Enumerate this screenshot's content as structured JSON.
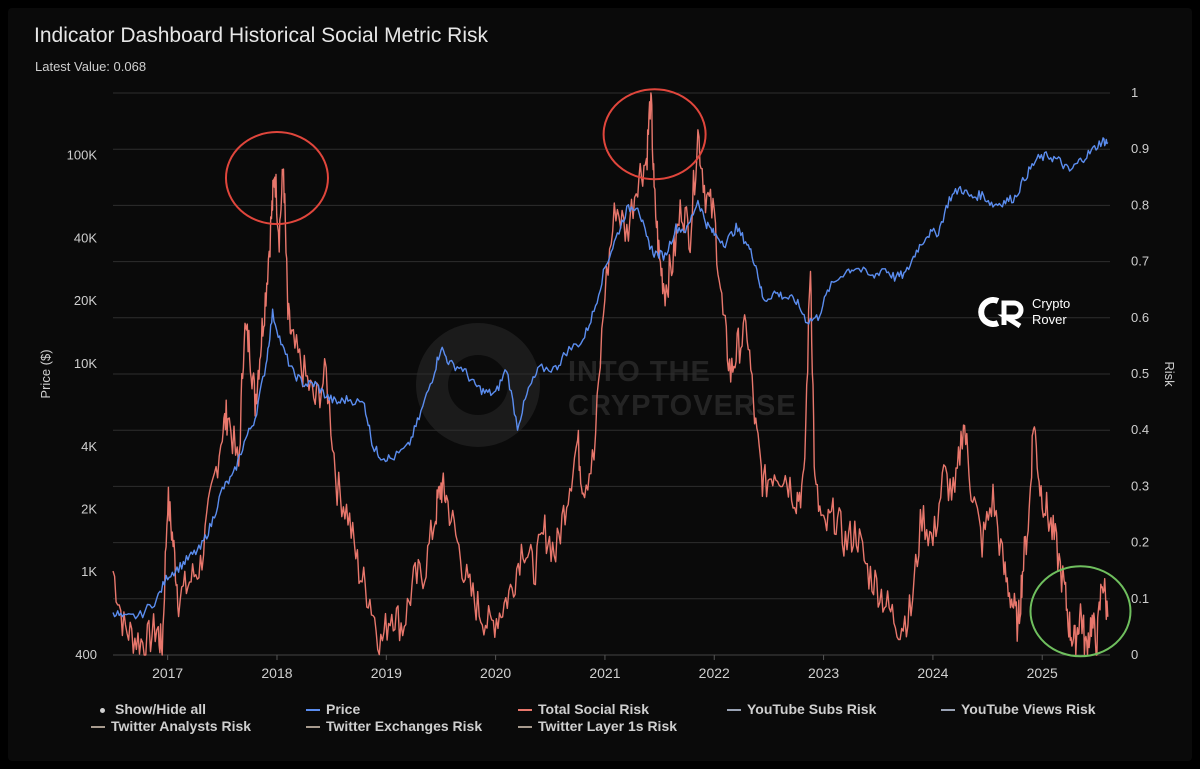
{
  "title": "Indicator Dashboard Historical Social Metric Risk",
  "latest_value_label": "Latest Value: 0.068",
  "brand": {
    "line1": "Crypto",
    "line2": "Rover",
    "logo_text": "CR"
  },
  "watermark": {
    "line1": "INTO THE",
    "line2": "CRYPTOVERSE"
  },
  "legend": [
    {
      "label": "Show/Hide all",
      "color": "#d0d0d0",
      "kind": "dot"
    },
    {
      "label": "Price",
      "color": "#5b8def",
      "kind": "line"
    },
    {
      "label": "Total Social Risk",
      "color": "#e8776c",
      "kind": "line"
    },
    {
      "label": "YouTube Subs Risk",
      "color": "#9aa3b5",
      "kind": "line"
    },
    {
      "label": "YouTube Views Risk",
      "color": "#9aa3b5",
      "kind": "line"
    },
    {
      "label": "Twitter Analysts Risk",
      "color": "#a89b8e",
      "kind": "line"
    },
    {
      "label": "Twitter Exchanges Risk",
      "color": "#a89b8e",
      "kind": "line"
    },
    {
      "label": "Twitter Layer 1s Risk",
      "color": "#a89b8e",
      "kind": "line"
    }
  ],
  "chart_data": {
    "type": "line",
    "title": "Indicator Dashboard Historical Social Metric Risk",
    "subtitle": "Latest Value: 0.068",
    "xlabel": "",
    "ylabel_left": "Price ($)",
    "ylabel_right": "Risk",
    "x_ticks": [
      "2017",
      "2018",
      "2019",
      "2020",
      "2021",
      "2022",
      "2023",
      "2024",
      "2025"
    ],
    "x_range": [
      2016.5,
      2025.62
    ],
    "y_left_scale": "log",
    "y_left_ticks": [
      "400",
      "1K",
      "2K",
      "4K",
      "10K",
      "20K",
      "40K",
      "100K"
    ],
    "y_left_tick_values": [
      400,
      1000,
      2000,
      4000,
      10000,
      20000,
      40000,
      100000
    ],
    "y_left_range": [
      400,
      200000
    ],
    "y_right_ticks": [
      "0",
      "0.1",
      "0.2",
      "0.3",
      "0.4",
      "0.5",
      "0.6",
      "0.7",
      "0.8",
      "0.9",
      "1"
    ],
    "y_right_range": [
      0,
      1
    ],
    "grid": true,
    "series": [
      {
        "name": "Price",
        "axis": "left",
        "color": "#5b8def",
        "points": [
          [
            2016.5,
            650
          ],
          [
            2016.6,
            600
          ],
          [
            2016.75,
            620
          ],
          [
            2016.9,
            740
          ],
          [
            2017.0,
            960
          ],
          [
            2017.1,
            1050
          ],
          [
            2017.2,
            1180
          ],
          [
            2017.3,
            1300
          ],
          [
            2017.4,
            1700
          ],
          [
            2017.5,
            2500
          ],
          [
            2017.6,
            2900
          ],
          [
            2017.7,
            4200
          ],
          [
            2017.8,
            5500
          ],
          [
            2017.9,
            10000
          ],
          [
            2017.96,
            17500
          ],
          [
            2018.05,
            12000
          ],
          [
            2018.15,
            9000
          ],
          [
            2018.25,
            8000
          ],
          [
            2018.35,
            8000
          ],
          [
            2018.45,
            7000
          ],
          [
            2018.55,
            6500
          ],
          [
            2018.65,
            6800
          ],
          [
            2018.8,
            6400
          ],
          [
            2018.88,
            4000
          ],
          [
            2018.95,
            3600
          ],
          [
            2019.05,
            3500
          ],
          [
            2019.2,
            4000
          ],
          [
            2019.3,
            5500
          ],
          [
            2019.42,
            8500
          ],
          [
            2019.5,
            12000
          ],
          [
            2019.58,
            10000
          ],
          [
            2019.7,
            9500
          ],
          [
            2019.8,
            8000
          ],
          [
            2019.9,
            7300
          ],
          [
            2020.0,
            7200
          ],
          [
            2020.1,
            9500
          ],
          [
            2020.2,
            5000
          ],
          [
            2020.3,
            7500
          ],
          [
            2020.4,
            9500
          ],
          [
            2020.55,
            9500
          ],
          [
            2020.65,
            11500
          ],
          [
            2020.8,
            13000
          ],
          [
            2020.9,
            18000
          ],
          [
            2021.0,
            29000
          ],
          [
            2021.1,
            40000
          ],
          [
            2021.2,
            55000
          ],
          [
            2021.3,
            58000
          ],
          [
            2021.38,
            40000
          ],
          [
            2021.45,
            34000
          ],
          [
            2021.55,
            33000
          ],
          [
            2021.65,
            45000
          ],
          [
            2021.75,
            44000
          ],
          [
            2021.85,
            61000
          ],
          [
            2021.93,
            47000
          ],
          [
            2022.0,
            42000
          ],
          [
            2022.1,
            38000
          ],
          [
            2022.2,
            45000
          ],
          [
            2022.3,
            38000
          ],
          [
            2022.38,
            30000
          ],
          [
            2022.45,
            20000
          ],
          [
            2022.55,
            22000
          ],
          [
            2022.65,
            21000
          ],
          [
            2022.75,
            20000
          ],
          [
            2022.85,
            16000
          ],
          [
            2022.95,
            16800
          ],
          [
            2023.05,
            23000
          ],
          [
            2023.2,
            28000
          ],
          [
            2023.3,
            29000
          ],
          [
            2023.45,
            26000
          ],
          [
            2023.55,
            29000
          ],
          [
            2023.65,
            26000
          ],
          [
            2023.75,
            27000
          ],
          [
            2023.85,
            35000
          ],
          [
            2023.95,
            42000
          ],
          [
            2024.05,
            43000
          ],
          [
            2024.15,
            62000
          ],
          [
            2024.25,
            70000
          ],
          [
            2024.35,
            63000
          ],
          [
            2024.45,
            65000
          ],
          [
            2024.55,
            58000
          ],
          [
            2024.65,
            60000
          ],
          [
            2024.75,
            63000
          ],
          [
            2024.85,
            80000
          ],
          [
            2024.95,
            96000
          ],
          [
            2025.05,
            100000
          ],
          [
            2025.15,
            95000
          ],
          [
            2025.25,
            84000
          ],
          [
            2025.35,
            95000
          ],
          [
            2025.45,
            105000
          ],
          [
            2025.55,
            118000
          ],
          [
            2025.6,
            116000
          ]
        ]
      },
      {
        "name": "Total Social Risk",
        "axis": "right",
        "color": "#e8776c",
        "points": [
          [
            2016.5,
            0.15
          ],
          [
            2016.6,
            0.05
          ],
          [
            2016.7,
            0.03
          ],
          [
            2016.8,
            0.02
          ],
          [
            2016.9,
            0.05
          ],
          [
            2016.95,
            0.01
          ],
          [
            2017.0,
            0.28
          ],
          [
            2017.05,
            0.2
          ],
          [
            2017.1,
            0.1
          ],
          [
            2017.2,
            0.13
          ],
          [
            2017.3,
            0.16
          ],
          [
            2017.4,
            0.28
          ],
          [
            2017.5,
            0.4
          ],
          [
            2017.55,
            0.43
          ],
          [
            2017.65,
            0.33
          ],
          [
            2017.7,
            0.58
          ],
          [
            2017.75,
            0.55
          ],
          [
            2017.8,
            0.45
          ],
          [
            2017.85,
            0.55
          ],
          [
            2017.9,
            0.65
          ],
          [
            2017.95,
            0.78
          ],
          [
            2017.98,
            0.86
          ],
          [
            2018.02,
            0.75
          ],
          [
            2018.06,
            0.87
          ],
          [
            2018.1,
            0.6
          ],
          [
            2018.15,
            0.55
          ],
          [
            2018.25,
            0.5
          ],
          [
            2018.35,
            0.45
          ],
          [
            2018.45,
            0.5
          ],
          [
            2018.55,
            0.3
          ],
          [
            2018.65,
            0.25
          ],
          [
            2018.75,
            0.15
          ],
          [
            2018.85,
            0.1
          ],
          [
            2018.95,
            0.02
          ],
          [
            2019.05,
            0.08
          ],
          [
            2019.15,
            0.05
          ],
          [
            2019.25,
            0.13
          ],
          [
            2019.35,
            0.15
          ],
          [
            2019.45,
            0.25
          ],
          [
            2019.5,
            0.3
          ],
          [
            2019.55,
            0.28
          ],
          [
            2019.65,
            0.2
          ],
          [
            2019.75,
            0.12
          ],
          [
            2019.85,
            0.08
          ],
          [
            2019.95,
            0.05
          ],
          [
            2020.05,
            0.08
          ],
          [
            2020.15,
            0.12
          ],
          [
            2020.25,
            0.2
          ],
          [
            2020.35,
            0.15
          ],
          [
            2020.45,
            0.22
          ],
          [
            2020.55,
            0.18
          ],
          [
            2020.65,
            0.28
          ],
          [
            2020.75,
            0.38
          ],
          [
            2020.8,
            0.3
          ],
          [
            2020.9,
            0.35
          ],
          [
            2021.0,
            0.65
          ],
          [
            2021.1,
            0.8
          ],
          [
            2021.2,
            0.75
          ],
          [
            2021.3,
            0.85
          ],
          [
            2021.38,
            0.88
          ],
          [
            2021.42,
            1.0
          ],
          [
            2021.45,
            0.82
          ],
          [
            2021.5,
            0.7
          ],
          [
            2021.55,
            0.65
          ],
          [
            2021.62,
            0.7
          ],
          [
            2021.7,
            0.8
          ],
          [
            2021.78,
            0.75
          ],
          [
            2021.85,
            0.93
          ],
          [
            2021.92,
            0.82
          ],
          [
            2022.0,
            0.78
          ],
          [
            2022.08,
            0.6
          ],
          [
            2022.15,
            0.5
          ],
          [
            2022.22,
            0.55
          ],
          [
            2022.3,
            0.58
          ],
          [
            2022.38,
            0.4
          ],
          [
            2022.45,
            0.3
          ],
          [
            2022.55,
            0.33
          ],
          [
            2022.65,
            0.32
          ],
          [
            2022.75,
            0.28
          ],
          [
            2022.82,
            0.3
          ],
          [
            2022.88,
            0.7
          ],
          [
            2022.92,
            0.3
          ],
          [
            2023.0,
            0.22
          ],
          [
            2023.1,
            0.25
          ],
          [
            2023.2,
            0.2
          ],
          [
            2023.3,
            0.22
          ],
          [
            2023.4,
            0.15
          ],
          [
            2023.5,
            0.12
          ],
          [
            2023.6,
            0.08
          ],
          [
            2023.7,
            0.05
          ],
          [
            2023.8,
            0.08
          ],
          [
            2023.9,
            0.25
          ],
          [
            2024.0,
            0.2
          ],
          [
            2024.1,
            0.32
          ],
          [
            2024.2,
            0.28
          ],
          [
            2024.28,
            0.42
          ],
          [
            2024.35,
            0.3
          ],
          [
            2024.45,
            0.2
          ],
          [
            2024.55,
            0.28
          ],
          [
            2024.65,
            0.15
          ],
          [
            2024.72,
            0.1
          ],
          [
            2024.78,
            0.05
          ],
          [
            2024.82,
            0.15
          ],
          [
            2024.88,
            0.25
          ],
          [
            2024.92,
            0.42
          ],
          [
            2024.98,
            0.3
          ],
          [
            2025.05,
            0.25
          ],
          [
            2025.12,
            0.2
          ],
          [
            2025.2,
            0.12
          ],
          [
            2025.25,
            0.05
          ],
          [
            2025.3,
            0.02
          ],
          [
            2025.35,
            0.08
          ],
          [
            2025.4,
            0.01
          ],
          [
            2025.45,
            0.06
          ],
          [
            2025.5,
            0.02
          ],
          [
            2025.55,
            0.14
          ],
          [
            2025.6,
            0.068
          ]
        ]
      }
    ],
    "annotations": [
      {
        "shape": "ellipse",
        "color": "#e0463c",
        "around": [
          2018.0,
          0.87
        ]
      },
      {
        "shape": "ellipse",
        "color": "#e0463c",
        "around": [
          2021.5,
          0.98
        ]
      },
      {
        "shape": "ellipse",
        "color": "#6fbf5e",
        "around": [
          2025.35,
          0.06
        ]
      }
    ]
  }
}
